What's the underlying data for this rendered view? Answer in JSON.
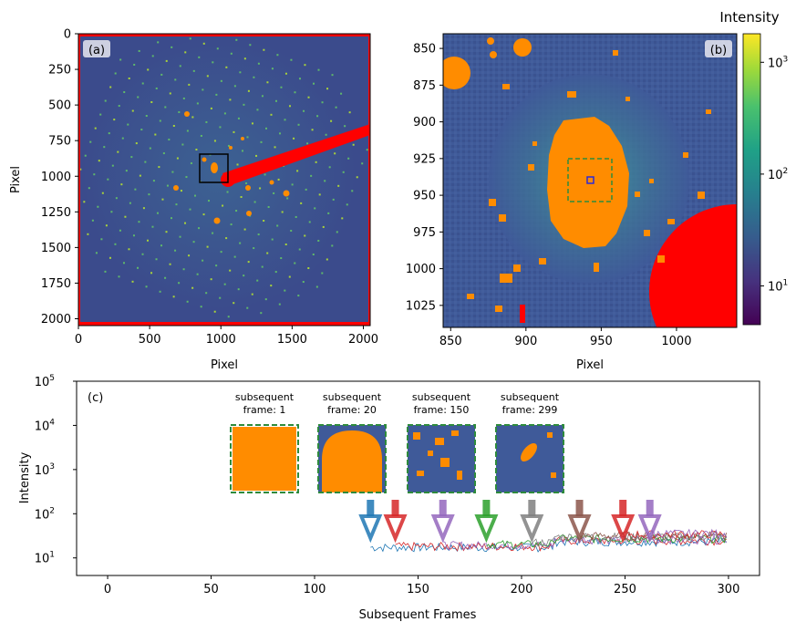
{
  "colors": {
    "background_dark": "#3b4b8c",
    "background_mid": "#3f5a99",
    "halo_teal": "#3f8e9c",
    "mask_orange": "#ff8c00",
    "mask_red": "#ff0000",
    "roi_green": "#2e8b3c",
    "center_blue": "#2b2bd8"
  },
  "panel_a": {
    "tag": "(a)",
    "xlabel": "Pixel",
    "ylabel": "Pixel",
    "xticks": [
      "0",
      "500",
      "1000",
      "1500",
      "2000"
    ],
    "yticks": [
      "0",
      "250",
      "500",
      "750",
      "1000",
      "1250",
      "1500",
      "1750",
      "2000"
    ]
  },
  "panel_b": {
    "tag": "(b)",
    "xlabel": "Pixel",
    "xticks": [
      "850",
      "900",
      "950",
      "1000"
    ],
    "yticks": [
      "850",
      "875",
      "900",
      "925",
      "950",
      "975",
      "1000",
      "1025"
    ]
  },
  "colorbar": {
    "title": "Intensity",
    "ticks": [
      "10",
      "10",
      "10"
    ],
    "tick_exponents": [
      "3",
      "2",
      "1"
    ],
    "scale": "log"
  },
  "chart_data": [
    {
      "type": "heatmap",
      "panel": "(a)",
      "xlabel": "Pixel",
      "ylabel": "Pixel",
      "xlim": [
        0,
        2048
      ],
      "ylim": [
        2048,
        0
      ],
      "roi_box": {
        "x": [
          845,
          1045
        ],
        "y": [
          845,
          1045
        ]
      }
    },
    {
      "type": "heatmap",
      "panel": "(b)",
      "xlabel": "Pixel",
      "xlim": [
        845,
        1040
      ],
      "ylim": [
        1040,
        840
      ],
      "roi_box": {
        "x": [
          930,
          960
        ],
        "y": [
          923,
          952
        ]
      },
      "center_box": {
        "x": [
          942,
          948
        ],
        "y": [
          935,
          941
        ]
      },
      "colorbar_label": "Intensity",
      "colorbar_scale": "log"
    },
    {
      "type": "line",
      "panel": "(c)",
      "xlabel": "Subsequent Frames",
      "ylabel": "Intensity",
      "yscale": "log",
      "xlim": [
        -15,
        315
      ],
      "ylim": [
        4,
        100000
      ],
      "xticks": [
        "0",
        "50",
        "100",
        "150",
        "200",
        "250",
        "300"
      ],
      "ytick_exponents": [
        "5",
        "4",
        "3",
        "2",
        "1"
      ],
      "ytick_base": "10",
      "series": [
        {
          "color": "#1f77b4",
          "start": 127,
          "level": 17
        },
        {
          "color": "#d62728",
          "start": 139,
          "level": 18
        },
        {
          "color": "#9467bd",
          "start": 162,
          "level": 19
        },
        {
          "color": "#2ca02c",
          "start": 183,
          "level": 20
        },
        {
          "color": "#7f7f7f",
          "start": 205,
          "level": 22
        },
        {
          "color": "#8c564b",
          "start": 228,
          "level": 23
        },
        {
          "color": "#d62728",
          "start": 249,
          "level": 25
        },
        {
          "color": "#9467bd",
          "start": 262,
          "level": 26
        }
      ],
      "arrows": [
        {
          "x": 127,
          "color": "#1f77b4"
        },
        {
          "x": 139,
          "color": "#d62728"
        },
        {
          "x": 162,
          "color": "#9467bd"
        },
        {
          "x": 183,
          "color": "#2ca02c"
        },
        {
          "x": 205,
          "color": "#7f7f7f"
        },
        {
          "x": 228,
          "color": "#8c564b"
        },
        {
          "x": 249,
          "color": "#d62728"
        },
        {
          "x": 262,
          "color": "#9467bd"
        }
      ],
      "insets": [
        {
          "line1": "subsequent",
          "line2": "frame: 1"
        },
        {
          "line1": "subsequent",
          "line2": "frame: 20"
        },
        {
          "line1": "subsequent",
          "line2": "frame: 150"
        },
        {
          "line1": "subsequent",
          "line2": "frame: 299"
        }
      ],
      "tag": "(c)"
    }
  ]
}
